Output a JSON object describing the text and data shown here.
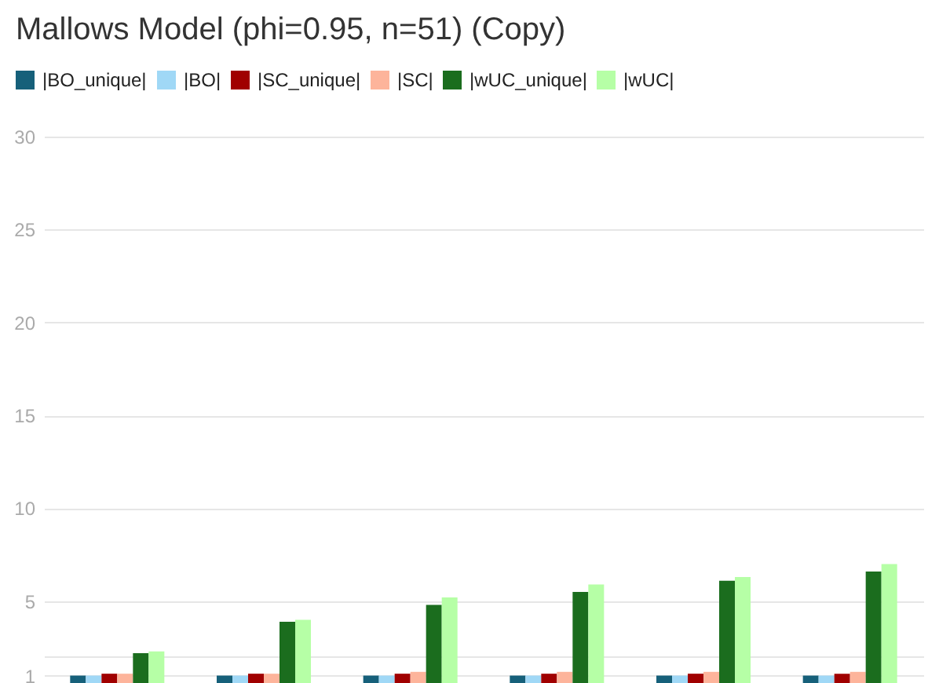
{
  "chart_data": {
    "type": "bar",
    "title": "Mallows Model (phi=0.95, n=51) (Copy)",
    "categories": [
      null,
      null,
      null,
      null,
      null,
      null
    ],
    "series": [
      {
        "name": "|BO_unique|",
        "color": "#16607a",
        "values": [
          1.0,
          1.0,
          1.0,
          1.0,
          1.0,
          1.0
        ]
      },
      {
        "name": "|BO|",
        "color": "#a0d8f6",
        "values": [
          1.0,
          1.0,
          1.0,
          1.0,
          1.0,
          1.0
        ]
      },
      {
        "name": "|SC_unique|",
        "color": "#a00000",
        "values": [
          1.1,
          1.1,
          1.1,
          1.1,
          1.1,
          1.1
        ]
      },
      {
        "name": "|SC|",
        "color": "#fdb49b",
        "values": [
          1.1,
          1.1,
          1.2,
          1.2,
          1.2,
          1.2
        ]
      },
      {
        "name": "|wUC_unique|",
        "color": "#1b6d1e",
        "values": [
          2.2,
          3.9,
          4.8,
          5.5,
          6.1,
          6.6
        ]
      },
      {
        "name": "|wUC|",
        "color": "#b6ffa6",
        "values": [
          2.3,
          4.0,
          5.2,
          5.9,
          6.3,
          7.0
        ]
      }
    ],
    "ylim": [
      0.6,
      30
    ],
    "yticks": [
      1,
      {
        "value": 2,
        "label": null
      },
      5,
      10,
      15,
      20,
      25,
      30
    ],
    "grid": "y",
    "legend": "top left"
  }
}
